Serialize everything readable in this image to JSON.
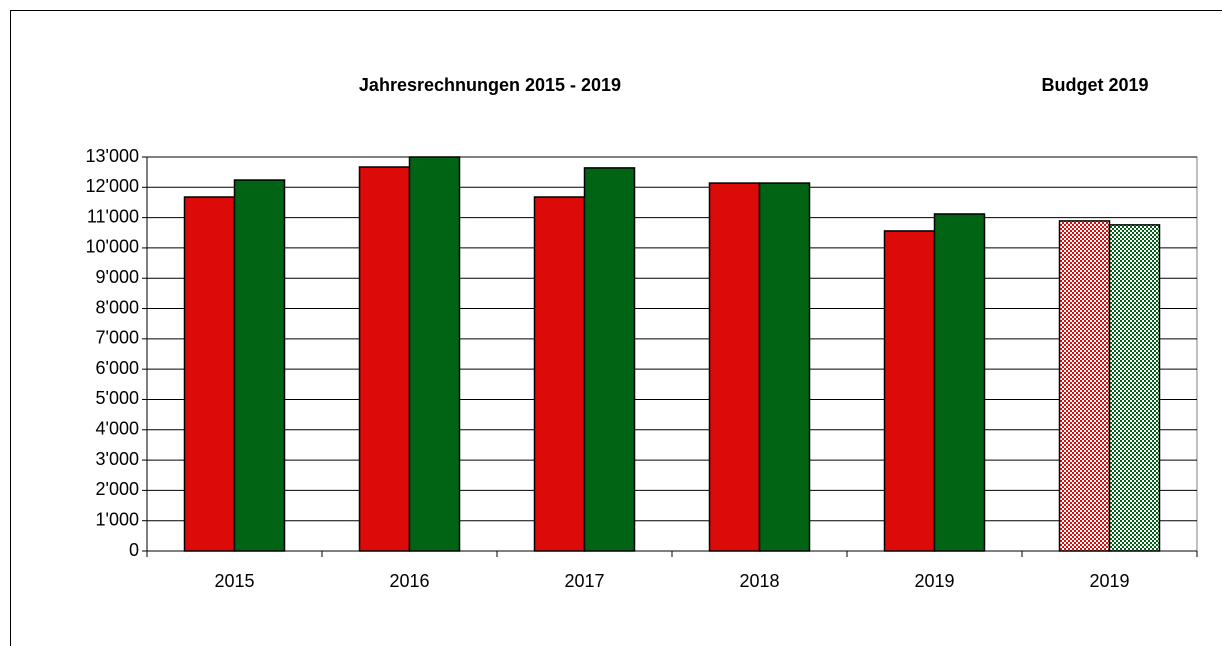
{
  "chart_data": {
    "type": "bar",
    "annotations": [
      "Jahresrechnungen 2015 - 2019",
      "Budget 2019"
    ],
    "categories": [
      "2015",
      "2016",
      "2017",
      "2018",
      "2019",
      "2019"
    ],
    "series": [
      {
        "color": "#dd0a0a",
        "values": [
          11680,
          12670,
          11680,
          12140,
          10560,
          10890
        ]
      },
      {
        "color": "#006414",
        "values": [
          12240,
          13000,
          12640,
          12140,
          11120,
          10760
        ]
      }
    ],
    "patterned": [
      false,
      false,
      false,
      false,
      false,
      true
    ],
    "ylim": [
      0,
      13000
    ],
    "yticks": [
      0,
      {
        "value": 1000,
        "label": "1'000"
      },
      {
        "value": 2000,
        "label": "2'000"
      },
      {
        "value": 3000,
        "label": "3'000"
      },
      {
        "value": 4000,
        "label": "4'000"
      },
      {
        "value": 5000,
        "label": "5'000"
      },
      {
        "value": 6000,
        "label": "6'000"
      },
      {
        "value": 7000,
        "label": "7'000"
      },
      {
        "value": 8000,
        "label": "8'000"
      },
      {
        "value": 9000,
        "label": "9'000"
      },
      {
        "value": 10000,
        "label": "10'000"
      },
      {
        "value": 11000,
        "label": "11'000"
      },
      {
        "value": 12000,
        "label": "12'000"
      },
      {
        "value": 13000,
        "label": "13'000"
      }
    ],
    "grid": true
  }
}
